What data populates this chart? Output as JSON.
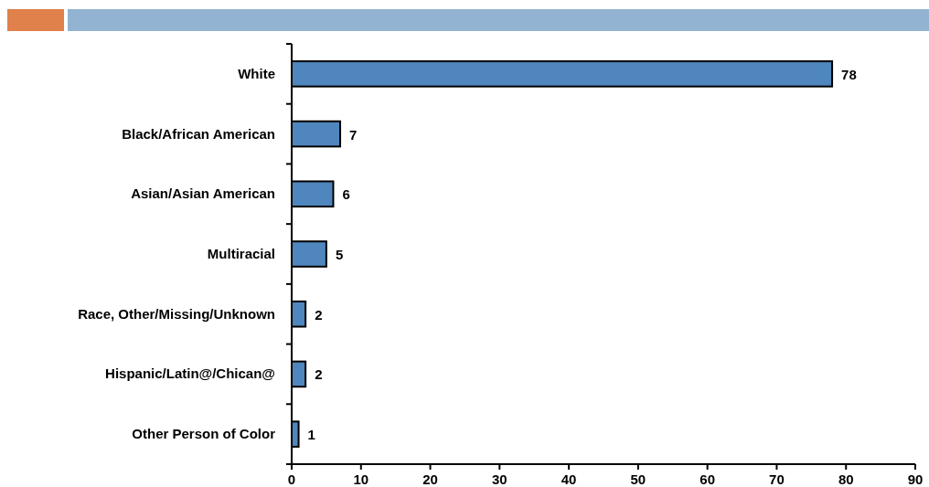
{
  "chart_data": {
    "type": "bar",
    "orientation": "horizontal",
    "categories": [
      "White",
      "Black/African American",
      "Asian/Asian American",
      "Multiracial",
      "Race, Other/Missing/Unknown",
      "Hispanic/Latin@/Chican@",
      "Other Person of Color"
    ],
    "values": [
      78,
      7,
      6,
      5,
      2,
      2,
      1
    ],
    "color": "#4f86bd",
    "xlim": [
      0,
      90
    ],
    "xticks": [
      0,
      10,
      20,
      30,
      40,
      50,
      60,
      70,
      80,
      90
    ],
    "data_labels": true
  }
}
